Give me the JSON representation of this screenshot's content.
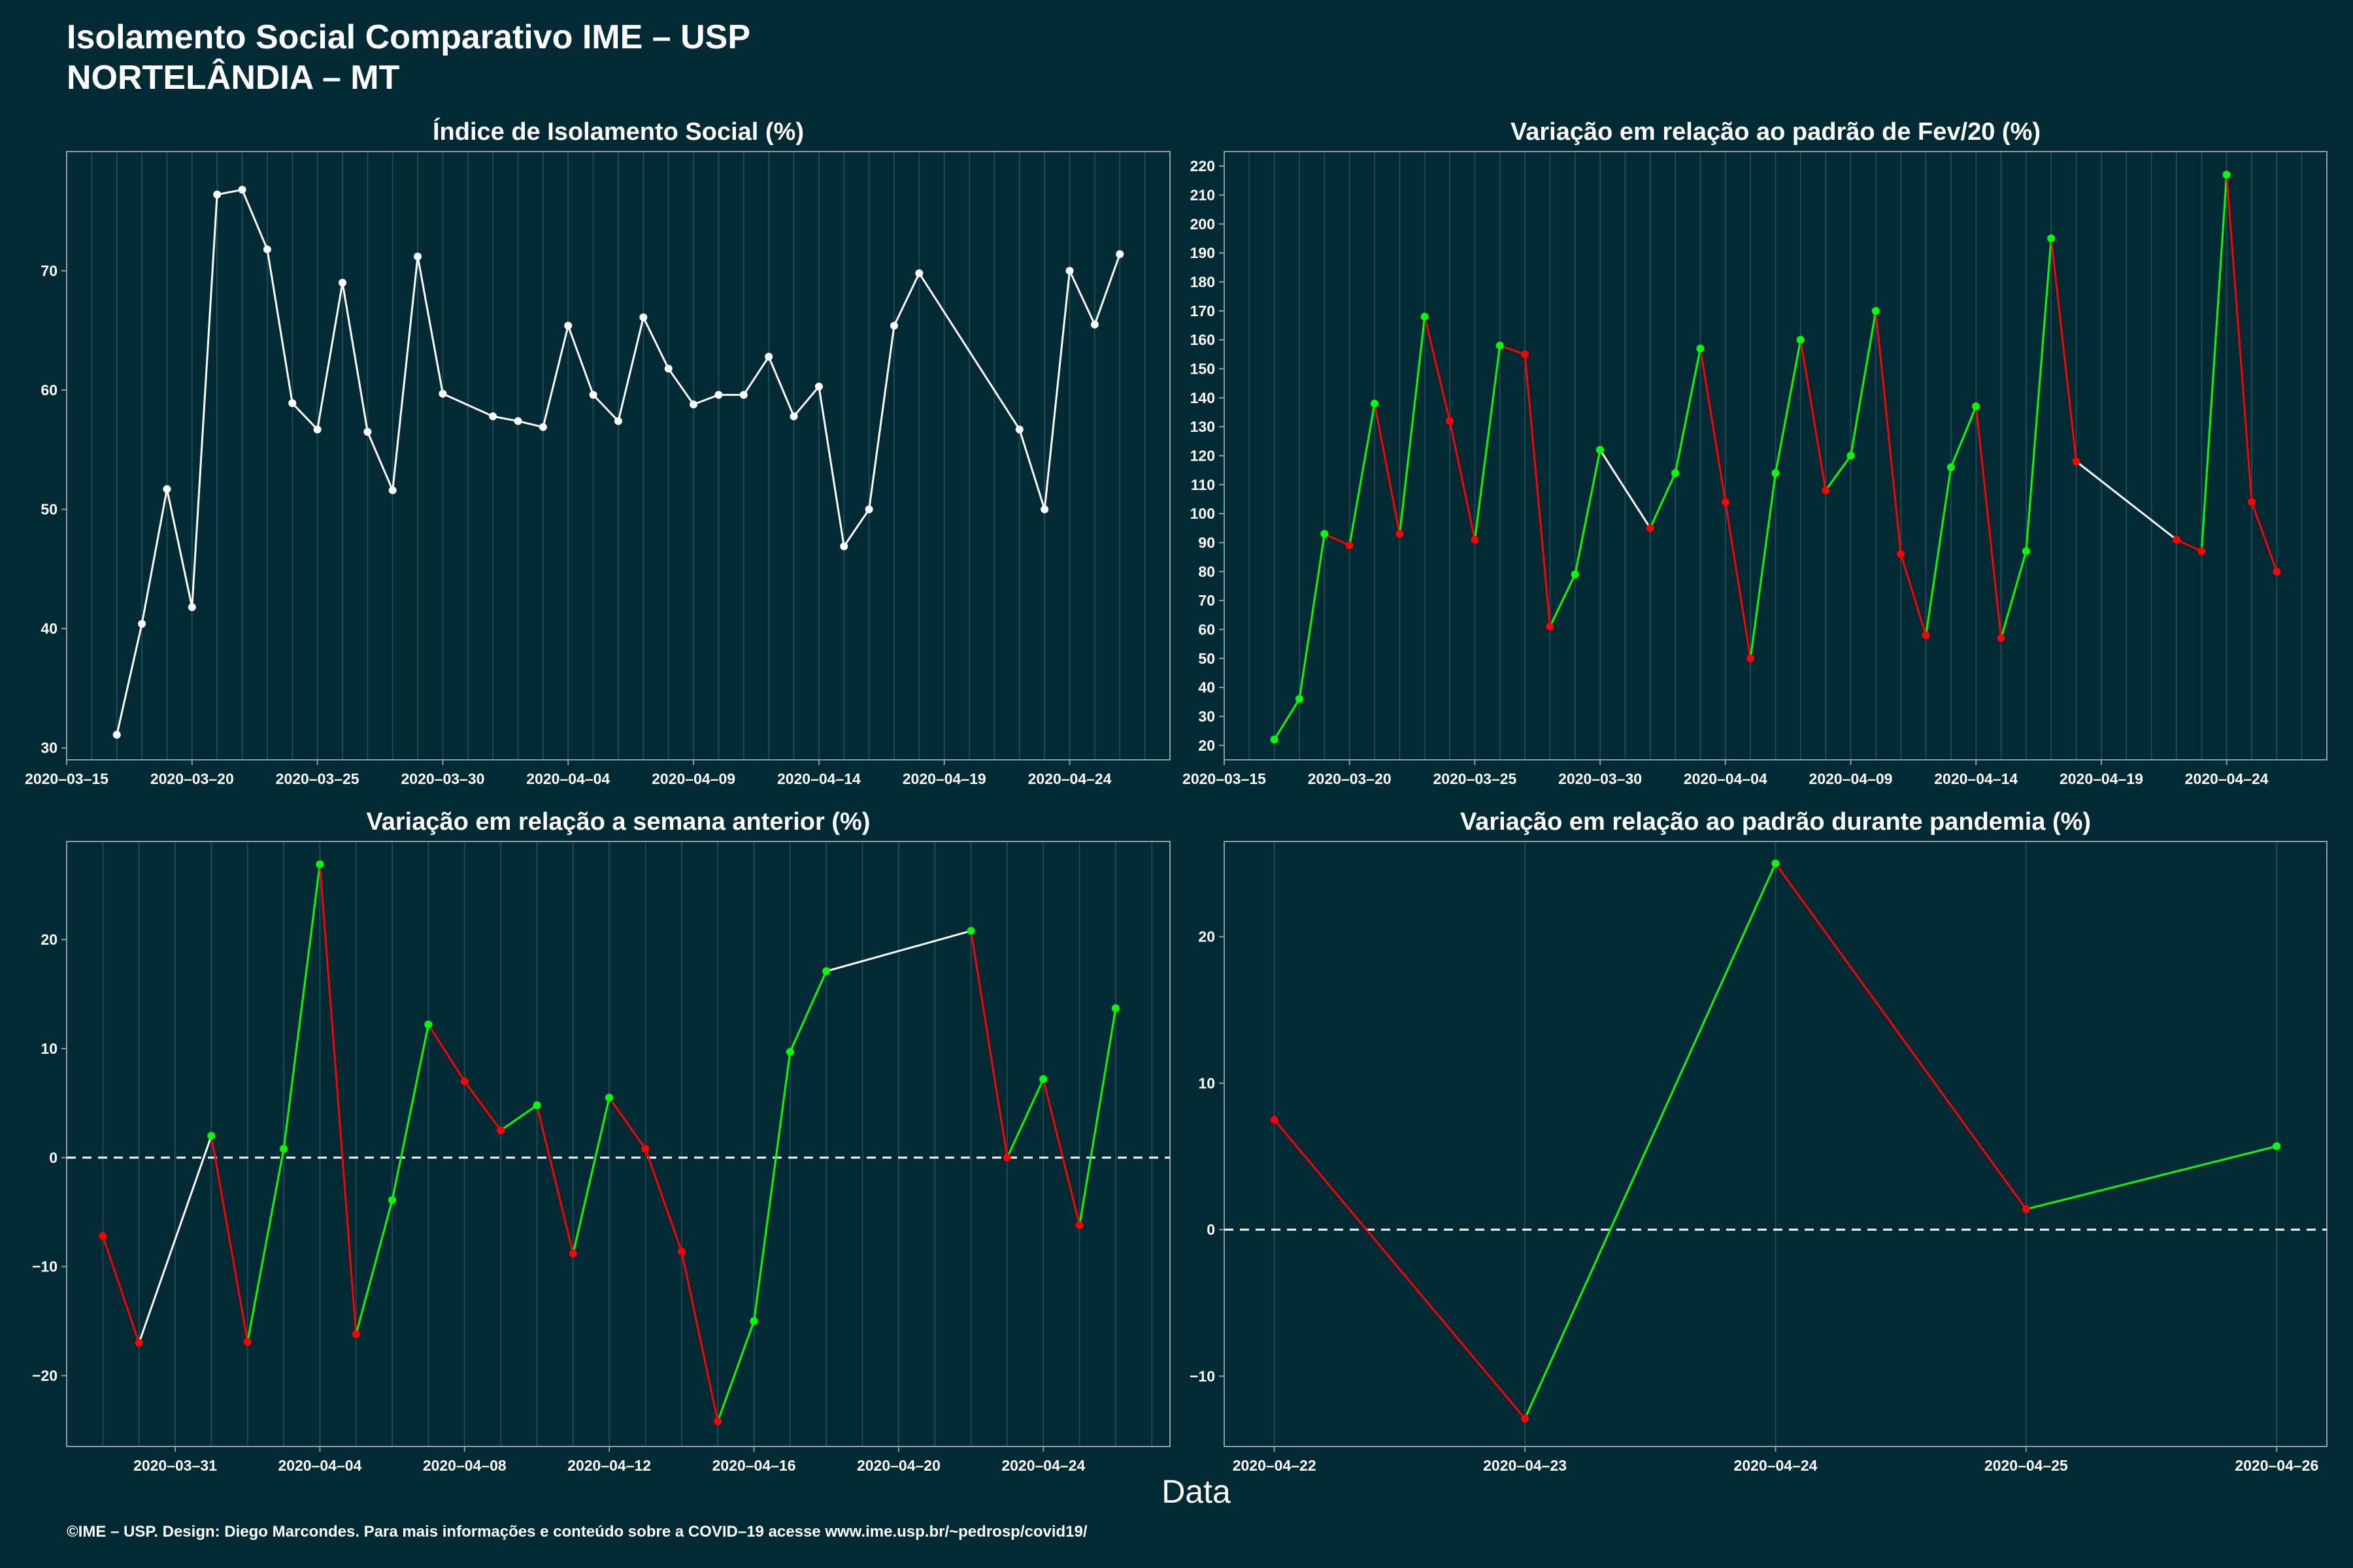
{
  "header": {
    "title": "Isolamento Social Comparativo IME – USP",
    "subtitle": "NORTELÂNDIA – MT"
  },
  "xlabel": "Data",
  "footer": "©IME – USP. Design: Diego Marcondes. Para mais informações e conteúdo sobre a COVID–19 acesse www.ime.usp.br/~pedrosp/covid19/",
  "colors": {
    "background": "#012a35",
    "up": "#00ff00",
    "down": "#ff0000",
    "neutral": "#ffffff",
    "gridline": "#1c4a55",
    "frame": "#8aa0a6"
  },
  "chart_data": [
    {
      "type": "line",
      "title": "Índice de Isolamento Social (%)",
      "color_mode": "white",
      "xlim": [
        "2020-03-15",
        "2020-04-28"
      ],
      "ylim": [
        29,
        80
      ],
      "yticks": [
        30,
        40,
        50,
        60,
        70
      ],
      "xticks": [
        "2020-03-15",
        "2020-03-20",
        "2020-03-25",
        "2020-03-30",
        "2020-04-04",
        "2020-04-09",
        "2020-04-14",
        "2020-04-19",
        "2020-04-24"
      ],
      "zero_line": false,
      "points": [
        [
          "2020-03-17",
          31.1
        ],
        [
          "2020-03-18",
          40.4
        ],
        [
          "2020-03-19",
          51.7
        ],
        [
          "2020-03-20",
          41.8
        ],
        [
          "2020-03-21",
          76.4
        ],
        [
          "2020-03-22",
          76.8
        ],
        [
          "2020-03-23",
          71.8
        ],
        [
          "2020-03-24",
          58.9
        ],
        [
          "2020-03-25",
          56.7
        ],
        [
          "2020-03-26",
          69.0
        ],
        [
          "2020-03-27",
          56.5
        ],
        [
          "2020-03-28",
          51.6
        ],
        [
          "2020-03-29",
          71.2
        ],
        [
          "2020-03-30",
          59.7
        ],
        [
          "2020-04-01",
          57.8
        ],
        [
          "2020-04-02",
          57.4
        ],
        [
          "2020-04-03",
          56.9
        ],
        [
          "2020-04-04",
          65.4
        ],
        [
          "2020-04-05",
          59.6
        ],
        [
          "2020-04-06",
          57.4
        ],
        [
          "2020-04-07",
          66.1
        ],
        [
          "2020-04-08",
          61.8
        ],
        [
          "2020-04-09",
          58.8
        ],
        [
          "2020-04-10",
          59.6
        ],
        [
          "2020-04-11",
          59.6
        ],
        [
          "2020-04-12",
          62.8
        ],
        [
          "2020-04-13",
          57.8
        ],
        [
          "2020-04-14",
          60.3
        ],
        [
          "2020-04-15",
          46.9
        ],
        [
          "2020-04-16",
          50.0
        ],
        [
          "2020-04-17",
          65.4
        ],
        [
          "2020-04-18",
          69.8
        ],
        [
          "2020-04-22",
          56.7
        ],
        [
          "2020-04-23",
          50.0
        ],
        [
          "2020-04-24",
          70.0
        ],
        [
          "2020-04-25",
          65.5
        ],
        [
          "2020-04-26",
          71.4
        ]
      ]
    },
    {
      "type": "line",
      "title": "Variação em relação ao padrão de Fev/20 (%)",
      "color_mode": "trend",
      "xlim": [
        "2020-03-15",
        "2020-04-28"
      ],
      "ylim": [
        15,
        225
      ],
      "yticks": [
        20,
        30,
        40,
        50,
        60,
        70,
        80,
        90,
        100,
        110,
        120,
        130,
        140,
        150,
        160,
        170,
        180,
        190,
        200,
        210,
        220
      ],
      "xticks": [
        "2020-03-15",
        "2020-03-20",
        "2020-03-25",
        "2020-03-30",
        "2020-04-04",
        "2020-04-09",
        "2020-04-14",
        "2020-04-19",
        "2020-04-24"
      ],
      "zero_line": false,
      "points": [
        [
          "2020-03-17",
          22
        ],
        [
          "2020-03-18",
          36
        ],
        [
          "2020-03-19",
          93
        ],
        [
          "2020-03-20",
          89
        ],
        [
          "2020-03-21",
          138
        ],
        [
          "2020-03-22",
          93
        ],
        [
          "2020-03-23",
          168
        ],
        [
          "2020-03-24",
          132
        ],
        [
          "2020-03-25",
          91
        ],
        [
          "2020-03-26",
          158
        ],
        [
          "2020-03-27",
          155
        ],
        [
          "2020-03-28",
          61
        ],
        [
          "2020-03-29",
          79
        ],
        [
          "2020-03-30",
          122
        ],
        [
          "2020-04-01",
          95
        ],
        [
          "2020-04-02",
          114
        ],
        [
          "2020-04-03",
          157
        ],
        [
          "2020-04-04",
          104
        ],
        [
          "2020-04-05",
          50
        ],
        [
          "2020-04-06",
          114
        ],
        [
          "2020-04-07",
          160
        ],
        [
          "2020-04-08",
          108
        ],
        [
          "2020-04-09",
          120
        ],
        [
          "2020-04-10",
          170
        ],
        [
          "2020-04-11",
          86
        ],
        [
          "2020-04-12",
          58
        ],
        [
          "2020-04-13",
          116
        ],
        [
          "2020-04-14",
          137
        ],
        [
          "2020-04-15",
          57
        ],
        [
          "2020-04-16",
          87
        ],
        [
          "2020-04-17",
          195
        ],
        [
          "2020-04-18",
          118
        ],
        [
          "2020-04-22",
          91
        ],
        [
          "2020-04-23",
          87
        ],
        [
          "2020-04-24",
          217
        ],
        [
          "2020-04-25",
          104
        ],
        [
          "2020-04-26",
          80
        ]
      ]
    },
    {
      "type": "line",
      "title": "Variação em relação a semana anterior (%)",
      "color_mode": "trend",
      "xlim": [
        "2020-03-28",
        "2020-04-27.5"
      ],
      "ylim": [
        -26.5,
        29
      ],
      "yticks": [
        -20,
        -10,
        0,
        10,
        20
      ],
      "xticks": [
        "2020-03-31",
        "2020-04-04",
        "2020-04-08",
        "2020-04-12",
        "2020-04-16",
        "2020-04-20",
        "2020-04-24"
      ],
      "zero_line": true,
      "points": [
        [
          "2020-03-29",
          -7.2
        ],
        [
          "2020-03-30",
          -17.0
        ],
        [
          "2020-04-01",
          2.0
        ],
        [
          "2020-04-02",
          -16.9
        ],
        [
          "2020-04-03",
          0.8
        ],
        [
          "2020-04-04",
          26.9
        ],
        [
          "2020-04-05",
          -16.2
        ],
        [
          "2020-04-06",
          -3.9
        ],
        [
          "2020-04-07",
          12.2
        ],
        [
          "2020-04-08",
          7.0
        ],
        [
          "2020-04-09",
          2.5
        ],
        [
          "2020-04-10",
          4.8
        ],
        [
          "2020-04-11",
          -8.8
        ],
        [
          "2020-04-12",
          5.5
        ],
        [
          "2020-04-13",
          0.8
        ],
        [
          "2020-04-14",
          -8.6
        ],
        [
          "2020-04-15",
          -24.2
        ],
        [
          "2020-04-16",
          -15.0
        ],
        [
          "2020-04-17",
          9.7
        ],
        [
          "2020-04-18",
          17.1
        ],
        [
          "2020-04-22",
          20.8
        ],
        [
          "2020-04-23",
          0.0
        ],
        [
          "2020-04-24",
          7.2
        ],
        [
          "2020-04-25",
          -6.2
        ],
        [
          "2020-04-26",
          13.7
        ]
      ]
    },
    {
      "type": "line",
      "title": "Variação em relação ao padrão durante pandemia (%)",
      "color_mode": "trend",
      "xlim": [
        "2020-04-21.8",
        "2020-04-26.2"
      ],
      "ylim": [
        -14.8,
        26.5
      ],
      "yticks": [
        -10,
        0,
        10,
        20
      ],
      "xticks": [
        "2020-04-22",
        "2020-04-23",
        "2020-04-24",
        "2020-04-25",
        "2020-04-26"
      ],
      "zero_line": true,
      "points": [
        [
          "2020-04-22",
          7.5
        ],
        [
          "2020-04-23",
          -12.9
        ],
        [
          "2020-04-24",
          25.0
        ],
        [
          "2020-04-25",
          1.4
        ],
        [
          "2020-04-26",
          5.7
        ]
      ]
    }
  ]
}
